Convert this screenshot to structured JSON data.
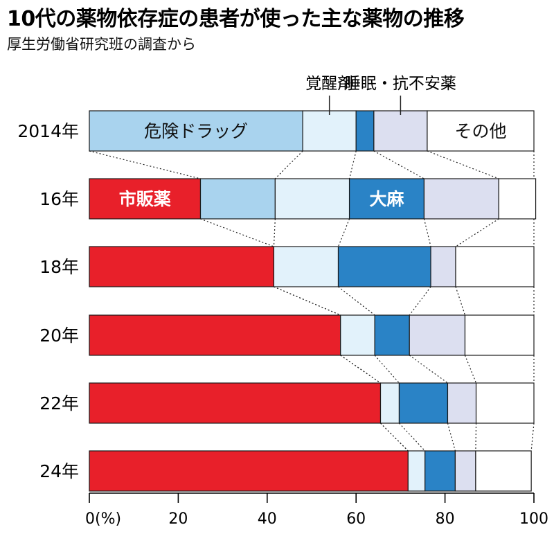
{
  "header": {
    "title": "10代の薬物依存症の患者が使った主な薬物の推移",
    "subtitle": "厚生労働省研究班の調査から"
  },
  "chart_data": {
    "type": "bar",
    "orientation": "horizontal",
    "stacked": true,
    "title": "10代の薬物依存症の患者が使った主な薬物の推移",
    "subtitle": "厚生労働省研究班の調査から",
    "categories": [
      "2014年",
      "16年",
      "18年",
      "20年",
      "22年",
      "24年"
    ],
    "series": [
      {
        "name": "市販薬",
        "color": "#e8202a",
        "values": [
          0,
          25,
          41.5,
          56.5,
          65.5,
          71.7
        ]
      },
      {
        "name": "危険ドラッグ",
        "color": "#a9d3ee",
        "values": [
          48,
          16.8,
          0,
          0,
          0,
          0
        ]
      },
      {
        "name": "覚醒剤",
        "color": "#e2f2fb",
        "values": [
          12,
          16.7,
          14.5,
          7.7,
          4.2,
          3.8
        ]
      },
      {
        "name": "大麻",
        "color": "#2a83c6",
        "values": [
          4,
          16.8,
          20.8,
          7.8,
          10.9,
          6.8
        ]
      },
      {
        "name": "睡眠・抗不安薬",
        "color": "#dcdff0",
        "values": [
          12,
          16.8,
          5.6,
          12.5,
          6.4,
          4.6
        ]
      },
      {
        "name": "その他",
        "color": "#ffffff",
        "values": [
          24,
          8.3,
          17.6,
          15.5,
          13,
          12.5
        ]
      }
    ],
    "xlim": [
      0,
      100
    ],
    "xticks": [
      0,
      20,
      40,
      60,
      80,
      100
    ],
    "xtick_labels": [
      "0(%)",
      "20",
      "40",
      "60",
      "80",
      "100"
    ],
    "labels": [
      {
        "text": "危険ドラッグ",
        "series": "危険ドラッグ",
        "row": "2014年",
        "placement": "inside"
      },
      {
        "text": "その他",
        "series": "その他",
        "row": "2014年",
        "placement": "inside"
      },
      {
        "text": "覚醒剤",
        "series": "覚醒剤",
        "row": "2014年",
        "placement": "above"
      },
      {
        "text": "睡眠・抗不安薬",
        "series": "睡眠・抗不安薬",
        "row": "2014年",
        "placement": "above"
      },
      {
        "text": "市販薬",
        "series": "市販薬",
        "row": "16年",
        "placement": "inside"
      },
      {
        "text": "大麻",
        "series": "大麻",
        "row": "16年",
        "placement": "inside"
      }
    ],
    "grid": false,
    "legend": "none"
  }
}
